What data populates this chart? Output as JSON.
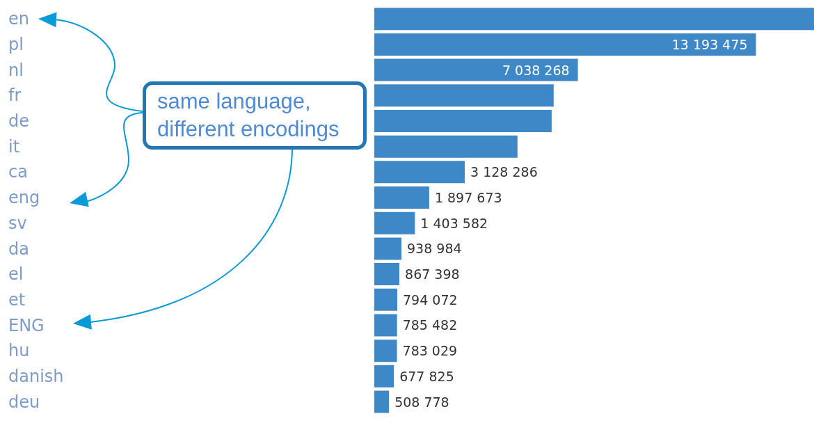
{
  "chart_data": {
    "type": "bar",
    "orientation": "horizontal",
    "categories": [
      "en",
      "pl",
      "nl",
      "fr",
      "de",
      "it",
      "ca",
      "eng",
      "sv",
      "da",
      "el",
      "et",
      "ENG",
      "hu",
      "danish",
      "deu"
    ],
    "values": [
      15200000,
      13193475,
      7038268,
      6200000,
      6130000,
      4950000,
      3128286,
      1897673,
      1403582,
      938984,
      867398,
      794072,
      785482,
      783029,
      677825,
      508778
    ],
    "value_labels": [
      null,
      "13 193 475",
      "7 038 268",
      null,
      null,
      null,
      "3 128 286",
      "1 897 673",
      "1 403 582",
      "938 984",
      "867 398",
      "794 072",
      "785 482",
      "783 029",
      "677 825",
      "508 778"
    ],
    "color": "#3f88c8",
    "xlim": [
      0,
      15200000
    ],
    "tick_labels": "y",
    "grid": false,
    "legend": false,
    "annotations": [
      "same language, different encodings"
    ]
  }
}
